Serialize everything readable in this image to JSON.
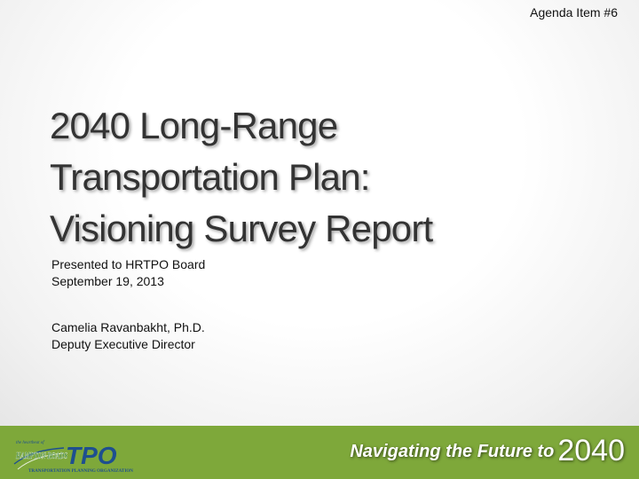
{
  "header": {
    "agenda_item": "Agenda Item #6"
  },
  "title": {
    "line1": "2040 Long-Range",
    "line2": "Transportation Plan:",
    "line3": "Visioning Survey Report"
  },
  "presentation": {
    "presented_to": "Presented to HRTPO Board",
    "date": "September 19, 2013"
  },
  "author": {
    "name": "Camelia Ravanbakht, Ph.D.",
    "role": "Deputy Executive Director"
  },
  "footer": {
    "logo": {
      "small_caption": "the heartbeat of",
      "region": "HAMPTON ROADS",
      "acronym": "TPO",
      "org_name": "TRANSPORTATION PLANNING ORGANIZATION"
    },
    "tagline": "Navigating the Future to",
    "tagline_year": "2040"
  },
  "colors": {
    "footer_green": "#7ea83a",
    "title_gray": "#333333",
    "logo_blue": "#1e4f8f"
  }
}
